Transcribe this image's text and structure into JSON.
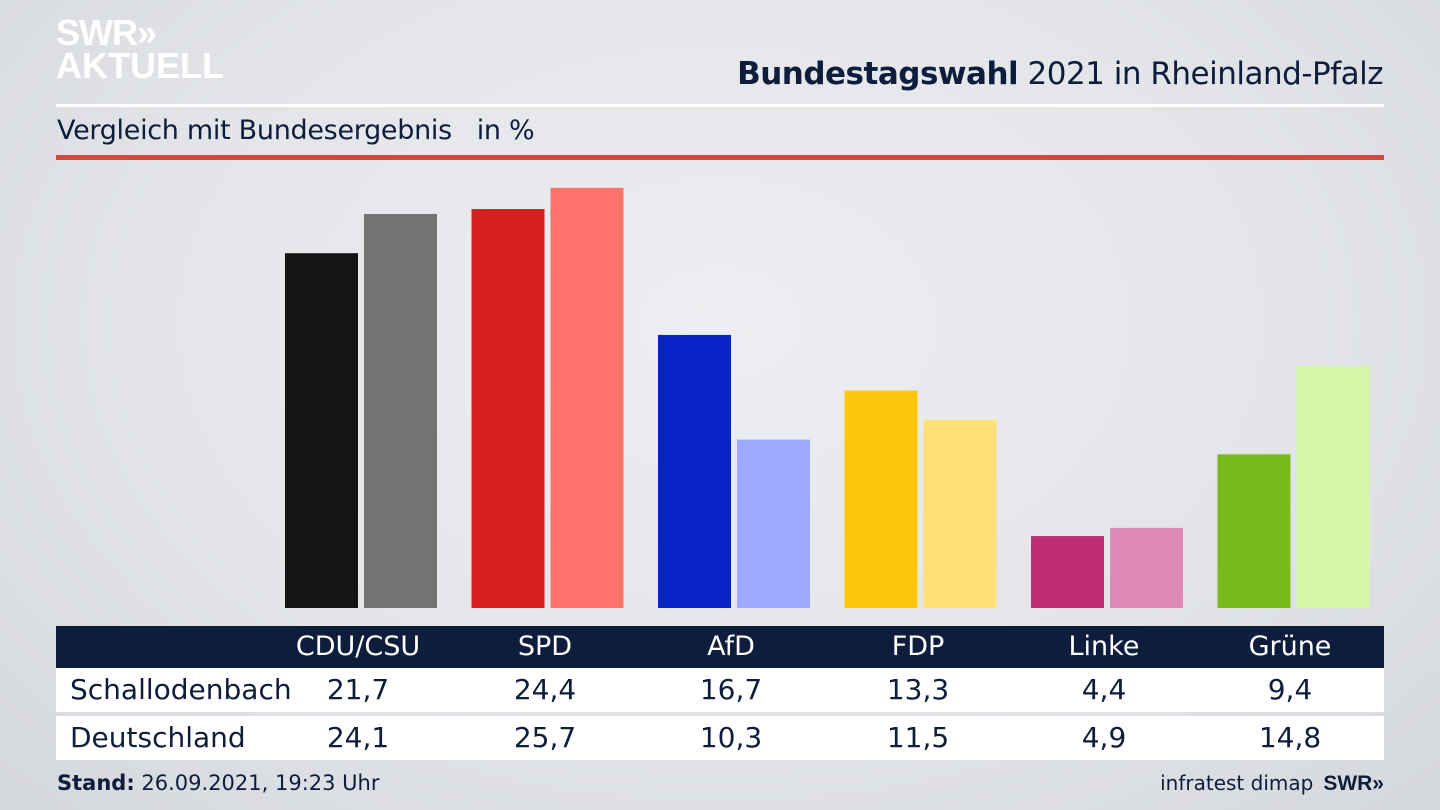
{
  "logo": {
    "line1": "SWR»",
    "line2": "AKTUELL"
  },
  "header": {
    "title_bold": "Bundestagswahl",
    "title_rest": " 2021 in Rheinland-Pfalz",
    "subtitle": "Vergleich mit Bundesergebnis   in %"
  },
  "colors": {
    "navy": "#0e1d3c",
    "accent_red": "#cd4a3c"
  },
  "chart_data": {
    "type": "bar",
    "title": "Bundestagswahl 2021 in Rheinland-Pfalz",
    "subtitle": "Vergleich mit Bundesergebnis in %",
    "xlabel": "",
    "ylabel": "in %",
    "ylim": [
      0,
      26.5
    ],
    "grid": false,
    "categories": [
      "CDU/CSU",
      "SPD",
      "AfD",
      "FDP",
      "Linke",
      "Grüne"
    ],
    "series": [
      {
        "name": "Schallodenbach",
        "values": [
          21.7,
          24.4,
          16.7,
          13.3,
          4.4,
          9.4
        ],
        "colors": [
          "#141414",
          "#d61f1f",
          "#0a23c6",
          "#fdc80c",
          "#be2c73",
          "#79bb1f"
        ]
      },
      {
        "name": "Deutschland",
        "values": [
          24.1,
          25.7,
          10.3,
          11.5,
          4.9,
          14.8
        ],
        "colors": [
          "#737373",
          "#ff736d",
          "#9eaaff",
          "#fde177",
          "#df89b6",
          "#d6f7a9"
        ]
      }
    ]
  },
  "table": {
    "headers": [
      "CDU/CSU",
      "SPD",
      "AfD",
      "FDP",
      "Linke",
      "Grüne"
    ],
    "rows": [
      {
        "label": "Schallodenbach",
        "values": [
          "21,7",
          "24,4",
          "16,7",
          "13,3",
          "4,4",
          "9,4"
        ]
      },
      {
        "label": "Deutschland",
        "values": [
          "24,1",
          "25,7",
          "10,3",
          "11,5",
          "4,9",
          "14,8"
        ]
      }
    ]
  },
  "footer": {
    "stand_label": "Stand:",
    "stand_value": " 26.09.2021, 19:23 Uhr",
    "source": "infratest dimap",
    "source_logo": "SWR»"
  }
}
